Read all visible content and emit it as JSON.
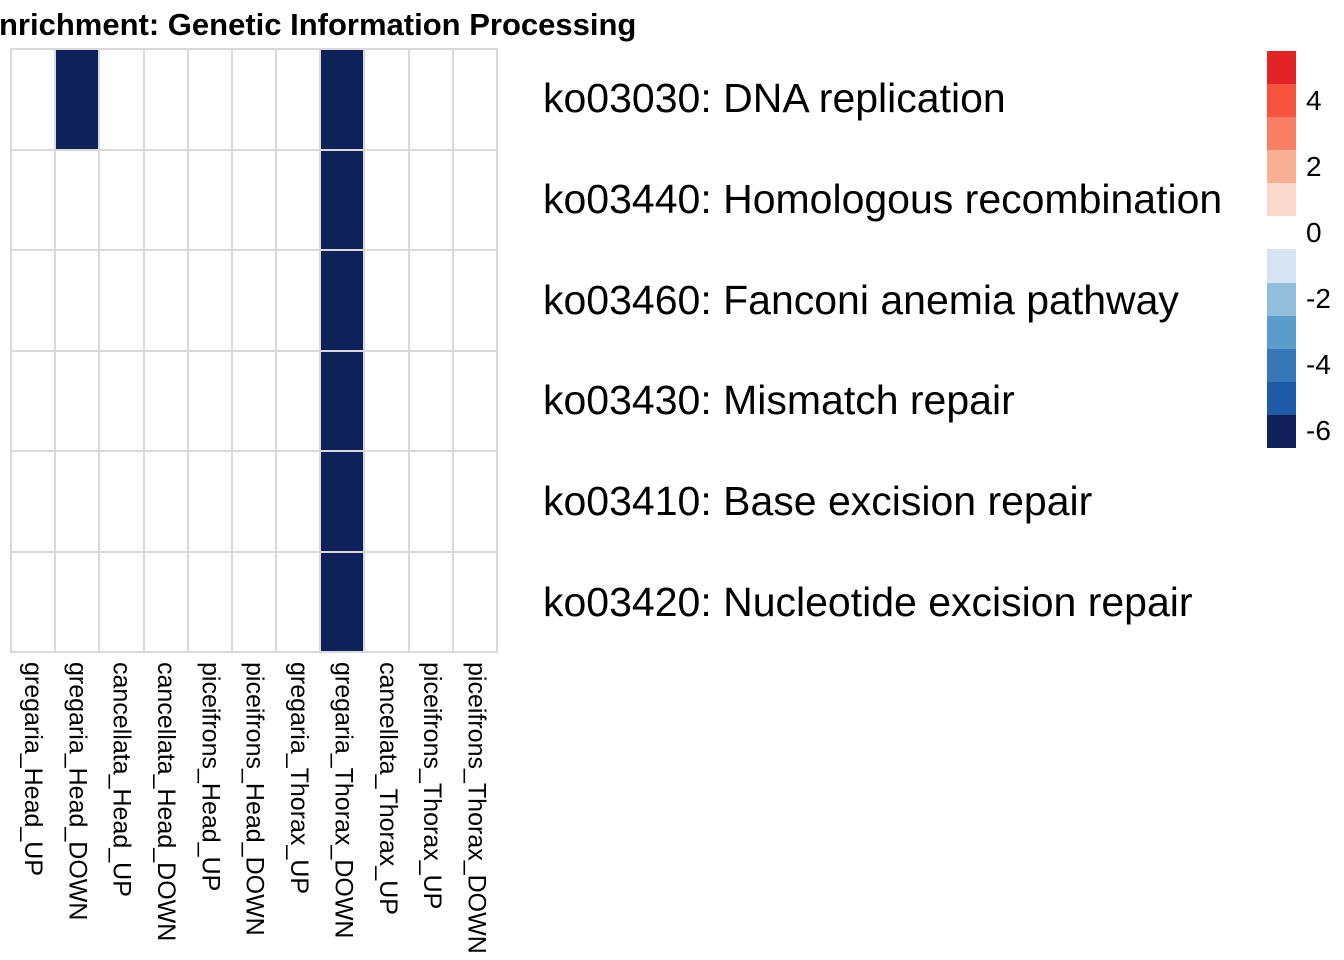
{
  "chart_data": {
    "type": "heatmap",
    "title": "nrichment: Genetic Information Processing",
    "columns": [
      "gregaria_Head_UP",
      "gregaria_Head_DOWN",
      "cancellata_Head_UP",
      "cancellata_Head_DOWN",
      "piceifrons_Head_UP",
      "piceifrons_Head_DOWN",
      "gregaria_Thorax_UP",
      "gregaria_Thorax_DOWN",
      "cancellata_Thorax_UP",
      "piceifrons_Thorax_UP",
      "piceifrons_Thorax_DOWN"
    ],
    "rows": [
      "ko03030: DNA replication",
      "ko03440: Homologous recombination",
      "ko03460: Fanconi anemia pathway",
      "ko03430: Mismatch repair",
      "ko03410: Base excision repair",
      "ko03420: Nucleotide excision repair"
    ],
    "values": [
      [
        null,
        -6,
        null,
        null,
        null,
        null,
        null,
        -6,
        null,
        null,
        null
      ],
      [
        null,
        null,
        null,
        null,
        null,
        null,
        null,
        -6,
        null,
        null,
        null
      ],
      [
        null,
        null,
        null,
        null,
        null,
        null,
        null,
        -6,
        null,
        null,
        null
      ],
      [
        null,
        null,
        null,
        null,
        null,
        null,
        null,
        -6,
        null,
        null,
        null
      ],
      [
        null,
        null,
        null,
        null,
        null,
        null,
        null,
        -6,
        null,
        null,
        null
      ],
      [
        null,
        null,
        null,
        null,
        null,
        null,
        null,
        -6,
        null,
        null,
        null
      ]
    ],
    "colors": {
      "filled_cell": "#0e2259",
      "empty_cell": "#ffffff",
      "grid_line": "#d9d9d9",
      "text": "#000000",
      "background": "#ffffff"
    },
    "legend": {
      "position": "right",
      "tick_labels": [
        "4",
        "2",
        "0",
        "-2",
        "-4",
        "-6"
      ],
      "tick_values": [
        4,
        2,
        0,
        -2,
        -4,
        -6
      ],
      "bins": [
        {
          "value": 5,
          "color": "#e32426"
        },
        {
          "value": 4,
          "color": "#f5533b"
        },
        {
          "value": 3,
          "color": "#f87f63"
        },
        {
          "value": 2,
          "color": "#f8b094"
        },
        {
          "value": 1,
          "color": "#fcdacb"
        },
        {
          "value": 0,
          "color": "#ffffff"
        },
        {
          "value": -1,
          "color": "#d4e4f3"
        },
        {
          "value": -2,
          "color": "#90bedb"
        },
        {
          "value": -3,
          "color": "#5a9ccb"
        },
        {
          "value": -4,
          "color": "#3678b7"
        },
        {
          "value": -5,
          "color": "#1d5ba6"
        },
        {
          "value": -6,
          "color": "#0e2259"
        }
      ]
    },
    "layout": {
      "grid_rows": 6,
      "grid_columns": 11,
      "legend_value_range": [
        5.5,
        -6.5
      ]
    }
  }
}
